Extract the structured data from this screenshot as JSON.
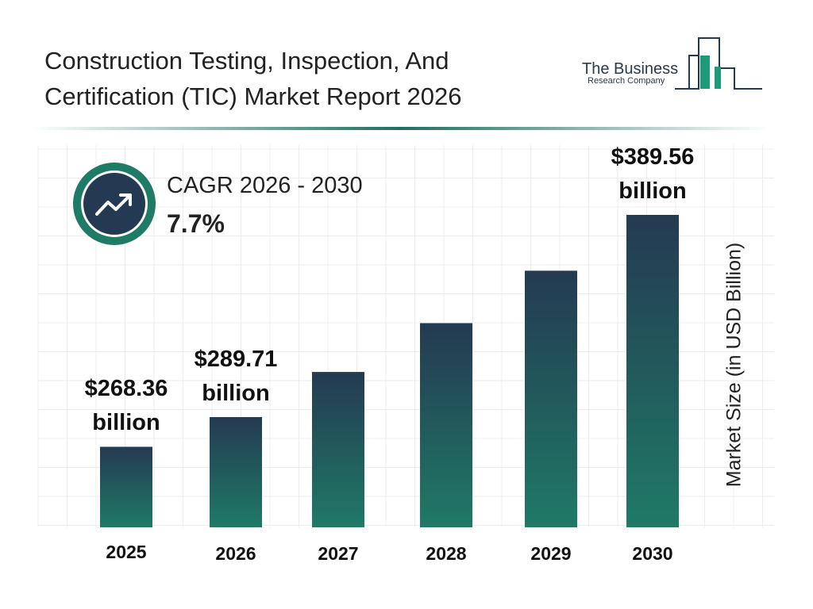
{
  "header": {
    "title": "Construction Testing, Inspection, And Certification (TIC) Market Report 2026"
  },
  "logo": {
    "line1": "The Business",
    "line2": "Research Company"
  },
  "cagr": {
    "label": "CAGR 2026 - 2030",
    "value": "7.7%",
    "icon": "trending-up-icon"
  },
  "colors": {
    "bar_top": "#243a52",
    "bar_bottom": "#1f7a66",
    "accent": "#1f7a66"
  },
  "chart_data": {
    "type": "bar",
    "categories": [
      "2025",
      "2026",
      "2027",
      "2028",
      "2029",
      "2030"
    ],
    "values": [
      268.36,
      289.71,
      312.0,
      336.1,
      362.0,
      389.56
    ],
    "data_labels": [
      {
        "index": 0,
        "value": "$268.36",
        "unit": "billion"
      },
      {
        "index": 1,
        "value": "$289.71",
        "unit": "billion"
      },
      {
        "index": 5,
        "value": "$389.56",
        "unit": "billion"
      }
    ],
    "title": "",
    "xlabel": "",
    "ylabel": "Market Size (in USD Billion)",
    "grid": true,
    "legend": "none"
  }
}
